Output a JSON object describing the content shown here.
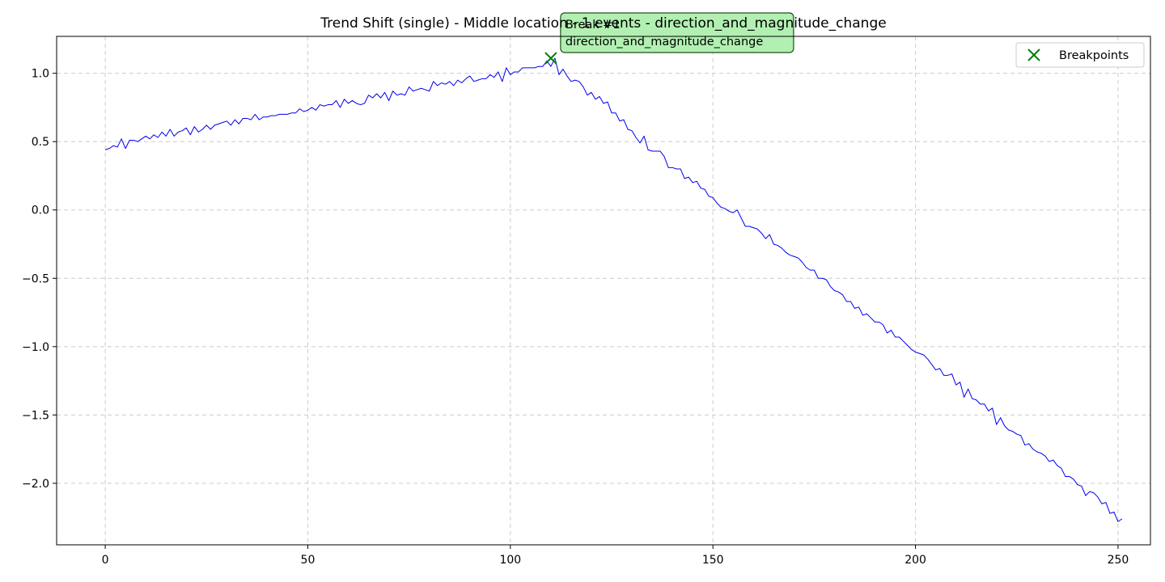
{
  "chart_data": {
    "type": "line",
    "title": "Trend Shift (single) - Middle location - 1 events - direction_and_magnitude_change",
    "xlabel": "",
    "ylabel": "",
    "xlim": [
      -12,
      258
    ],
    "ylim": [
      -2.45,
      1.27
    ],
    "x_ticks": [
      0,
      50,
      100,
      150,
      200,
      250
    ],
    "y_ticks": [
      1.0,
      0.5,
      0.0,
      -0.5,
      -1.0,
      -1.5,
      -2.0
    ],
    "x_tick_labels": [
      "0",
      "50",
      "100",
      "150",
      "200",
      "250"
    ],
    "y_tick_labels": [
      "1.0",
      "0.5",
      "0.0",
      "−0.5",
      "−1.0",
      "−1.5",
      "−2.0"
    ],
    "grid": true,
    "legend_position": "top-right",
    "colors": {
      "series": "#0000ee",
      "breakpoint": "#008000",
      "annotation_fill": "#b2f0b2",
      "annotation_edge": "#1f4f1f",
      "grid": "#cccccc"
    },
    "series": [
      {
        "values": [
          0.44,
          0.45,
          0.47,
          0.46,
          0.52,
          0.45,
          0.51,
          0.51,
          0.5,
          0.52,
          0.54,
          0.52,
          0.55,
          0.53,
          0.57,
          0.54,
          0.59,
          0.54,
          0.57,
          0.58,
          0.6,
          0.55,
          0.61,
          0.57,
          0.59,
          0.62,
          0.59,
          0.62,
          0.63,
          0.64,
          0.65,
          0.62,
          0.66,
          0.63,
          0.67,
          0.67,
          0.66,
          0.7,
          0.66,
          0.68,
          0.68,
          0.69,
          0.69,
          0.7,
          0.7,
          0.7,
          0.71,
          0.71,
          0.74,
          0.72,
          0.73,
          0.75,
          0.73,
          0.77,
          0.76,
          0.77,
          0.77,
          0.8,
          0.75,
          0.81,
          0.78,
          0.8,
          0.78,
          0.77,
          0.78,
          0.84,
          0.82,
          0.85,
          0.82,
          0.86,
          0.8,
          0.87,
          0.84,
          0.85,
          0.84,
          0.9,
          0.87,
          0.88,
          0.89,
          0.88,
          0.87,
          0.94,
          0.91,
          0.93,
          0.92,
          0.94,
          0.91,
          0.95,
          0.93,
          0.96,
          0.98,
          0.94,
          0.95,
          0.96,
          0.96,
          0.99,
          0.97,
          1.01,
          0.94,
          1.04,
          0.99,
          1.01,
          1.01,
          1.04,
          1.04,
          1.04,
          1.04,
          1.05,
          1.05,
          1.09,
          1.05,
          1.11,
          0.99,
          1.03,
          0.98,
          0.94,
          0.95,
          0.94,
          0.9,
          0.84,
          0.86,
          0.81,
          0.83,
          0.78,
          0.79,
          0.71,
          0.71,
          0.65,
          0.66,
          0.59,
          0.58,
          0.53,
          0.49,
          0.54,
          0.44,
          0.43,
          0.43,
          0.43,
          0.39,
          0.31,
          0.31,
          0.3,
          0.3,
          0.23,
          0.24,
          0.2,
          0.21,
          0.16,
          0.15,
          0.1,
          0.09,
          0.05,
          0.02,
          0.01,
          -0.01,
          -0.02,
          0.0,
          -0.06,
          -0.12,
          -0.12,
          -0.13,
          -0.14,
          -0.17,
          -0.21,
          -0.18,
          -0.25,
          -0.26,
          -0.28,
          -0.31,
          -0.33,
          -0.34,
          -0.35,
          -0.38,
          -0.42,
          -0.44,
          -0.44,
          -0.5,
          -0.5,
          -0.51,
          -0.56,
          -0.59,
          -0.6,
          -0.62,
          -0.67,
          -0.67,
          -0.72,
          -0.71,
          -0.77,
          -0.76,
          -0.79,
          -0.82,
          -0.82,
          -0.84,
          -0.9,
          -0.88,
          -0.93,
          -0.93,
          -0.96,
          -0.99,
          -1.02,
          -1.04,
          -1.05,
          -1.06,
          -1.09,
          -1.13,
          -1.17,
          -1.16,
          -1.21,
          -1.21,
          -1.2,
          -1.28,
          -1.26,
          -1.37,
          -1.31,
          -1.38,
          -1.39,
          -1.42,
          -1.42,
          -1.47,
          -1.45,
          -1.57,
          -1.52,
          -1.58,
          -1.61,
          -1.62,
          -1.64,
          -1.65,
          -1.72,
          -1.71,
          -1.75,
          -1.77,
          -1.78,
          -1.8,
          -1.84,
          -1.83,
          -1.87,
          -1.89,
          -1.95,
          -1.95,
          -1.97,
          -2.01,
          -2.02,
          -2.09,
          -2.06,
          -2.07,
          -2.1,
          -2.15,
          -2.14,
          -2.22,
          -2.21,
          -2.28,
          -2.26
        ]
      }
    ],
    "breakpoints": [
      {
        "x": 110,
        "y": 1.11
      }
    ],
    "annotation": {
      "line1": "Break #1",
      "line2": "direction_and_magnitude_change"
    },
    "legend": {
      "label": "Breakpoints"
    }
  }
}
